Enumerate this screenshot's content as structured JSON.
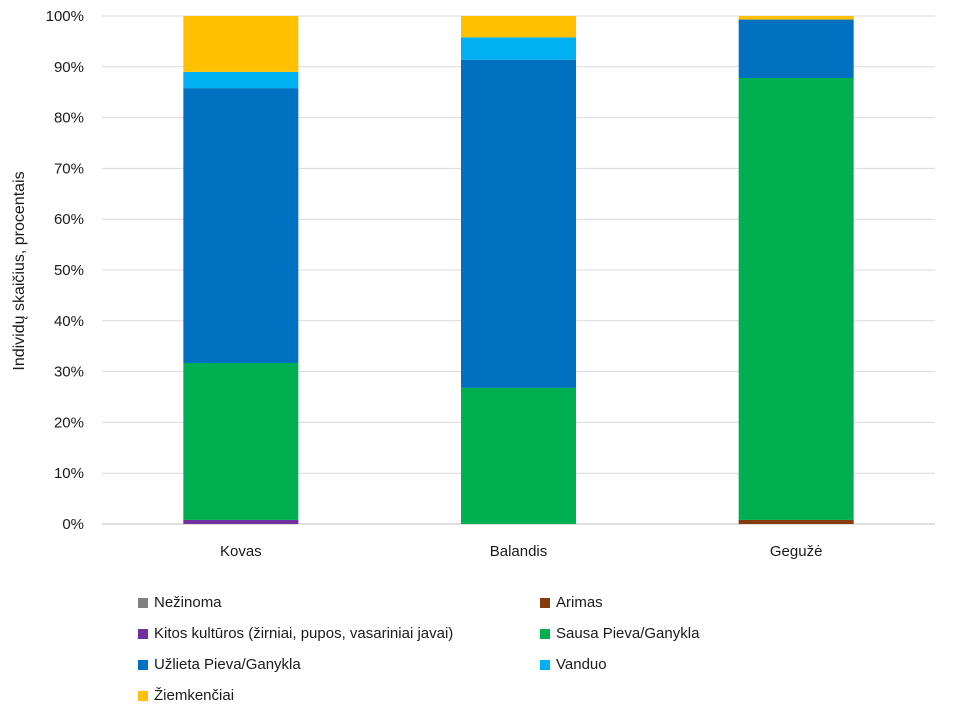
{
  "chart_data": {
    "type": "bar",
    "stacked": true,
    "percent": true,
    "title": "",
    "xlabel": "",
    "ylabel": "Individų skaičius, procentais",
    "ylim": [
      0,
      100
    ],
    "yticks": [
      "0%",
      "10%",
      "20%",
      "30%",
      "40%",
      "50%",
      "60%",
      "70%",
      "80%",
      "90%",
      "100%"
    ],
    "grid": true,
    "legend_position": "bottom",
    "categories": [
      "Kovas",
      "Balandis",
      "Gegužė"
    ],
    "series": [
      {
        "name": "Nežinoma",
        "color": "#808080",
        "values": [
          0,
          0,
          0
        ]
      },
      {
        "name": "Arimas",
        "color": "#843c0c",
        "values": [
          0,
          0,
          0.8
        ]
      },
      {
        "name": "Kitos kultūros (žirniai, pupos, vasariniai javai)",
        "color": "#7030a0",
        "values": [
          0.8,
          0,
          0
        ]
      },
      {
        "name": "Sausa Pieva/Ganykla",
        "color": "#00b050",
        "values": [
          30.9,
          26.8,
          87.0
        ]
      },
      {
        "name": "Užlieta Pieva/Ganykla",
        "color": "#0070c0",
        "values": [
          54.1,
          64.6,
          11.5
        ]
      },
      {
        "name": "Vanduo",
        "color": "#00b0f0",
        "values": [
          3.2,
          4.4,
          0
        ]
      },
      {
        "name": "Žiemkenčiai",
        "color": "#ffc000",
        "values": [
          11.0,
          4.2,
          0.7
        ]
      }
    ]
  }
}
